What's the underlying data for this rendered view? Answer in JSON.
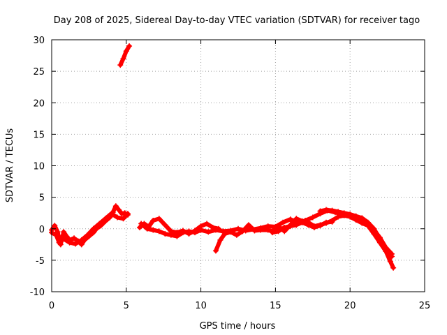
{
  "chart_data": {
    "type": "scatter",
    "title": "Day 208 of 2025, Sidereal Day-to-day VTEC variation (SDTVAR) for receiver tago",
    "xlabel": "GPS time / hours",
    "ylabel": "SDTVAR / TECUs",
    "xlim": [
      0,
      25
    ],
    "ylim": [
      -10,
      30
    ],
    "xticks": [
      0,
      5,
      10,
      15,
      20,
      25
    ],
    "yticks": [
      -10,
      -5,
      0,
      5,
      10,
      15,
      20,
      25,
      30
    ],
    "grid": true,
    "marker_color": "#ff0000",
    "series": [
      {
        "name": "tago",
        "segments": [
          [
            [
              0.0,
              -0.2
            ],
            [
              0.2,
              0.5
            ],
            [
              0.4,
              -0.5
            ],
            [
              0.6,
              -2.5
            ],
            [
              0.8,
              -0.5
            ],
            [
              1.0,
              -1.2
            ],
            [
              1.2,
              -1.8
            ],
            [
              1.5,
              -1.5
            ],
            [
              1.8,
              -2.0
            ],
            [
              2.0,
              -2.5
            ],
            [
              2.2,
              -1.8
            ],
            [
              2.5,
              -1.2
            ],
            [
              2.8,
              -0.6
            ],
            [
              3.0,
              0.0
            ],
            [
              3.3,
              0.5
            ],
            [
              3.6,
              1.2
            ],
            [
              3.9,
              1.8
            ],
            [
              4.1,
              2.6
            ],
            [
              4.3,
              3.6
            ],
            [
              4.5,
              3.0
            ],
            [
              4.7,
              2.4
            ],
            [
              4.9,
              2.5
            ],
            [
              5.1,
              2.2
            ]
          ],
          [
            [
              0.0,
              -0.6
            ],
            [
              0.3,
              -1.0
            ],
            [
              0.5,
              -2.2
            ],
            [
              0.8,
              -1.6
            ],
            [
              1.2,
              -2.2
            ],
            [
              1.6,
              -2.4
            ],
            [
              2.0,
              -1.8
            ],
            [
              2.4,
              -1.0
            ],
            [
              2.8,
              0.0
            ],
            [
              3.2,
              0.8
            ],
            [
              3.6,
              1.6
            ],
            [
              4.0,
              2.4
            ],
            [
              4.4,
              1.8
            ],
            [
              4.8,
              1.6
            ],
            [
              5.1,
              2.4
            ]
          ],
          [
            [
              4.6,
              26.0
            ],
            [
              4.8,
              27.0
            ],
            [
              5.0,
              28.2
            ],
            [
              5.2,
              29.0
            ]
          ],
          [
            [
              5.9,
              0.2
            ],
            [
              6.2,
              0.8
            ],
            [
              6.5,
              0.3
            ],
            [
              6.8,
              1.3
            ],
            [
              7.2,
              1.6
            ],
            [
              7.6,
              0.6
            ],
            [
              8.0,
              -0.4
            ],
            [
              8.4,
              -0.6
            ],
            [
              8.8,
              -0.3
            ],
            [
              9.2,
              -0.8
            ],
            [
              9.6,
              -0.3
            ],
            [
              10.0,
              0.4
            ],
            [
              10.4,
              0.8
            ],
            [
              10.8,
              0.2
            ],
            [
              11.2,
              0.0
            ]
          ],
          [
            [
              6.0,
              0.8
            ],
            [
              6.4,
              0.0
            ],
            [
              6.8,
              -0.2
            ],
            [
              7.2,
              -0.4
            ],
            [
              7.6,
              -0.8
            ],
            [
              8.0,
              -1.0
            ],
            [
              8.4,
              -1.2
            ],
            [
              8.8,
              -0.6
            ],
            [
              9.2,
              -0.4
            ],
            [
              9.6,
              -0.6
            ],
            [
              10.0,
              -0.2
            ]
          ],
          [
            [
              10.0,
              -0.2
            ],
            [
              10.5,
              -0.5
            ],
            [
              11.0,
              -0.2
            ],
            [
              11.5,
              -0.4
            ],
            [
              12.0,
              -0.3
            ],
            [
              12.5,
              0.0
            ],
            [
              13.0,
              -0.3
            ],
            [
              13.5,
              -0.1
            ],
            [
              14.0,
              0.1
            ],
            [
              14.5,
              0.4
            ],
            [
              15.0,
              0.3
            ],
            [
              15.5,
              1.0
            ],
            [
              16.0,
              1.5
            ],
            [
              16.5,
              0.9
            ],
            [
              17.0,
              1.3
            ],
            [
              17.5,
              1.8
            ],
            [
              18.0,
              2.4
            ],
            [
              18.5,
              2.9
            ],
            [
              19.0,
              2.6
            ],
            [
              19.5,
              2.3
            ],
            [
              20.0,
              2.1
            ],
            [
              20.5,
              1.6
            ],
            [
              21.0,
              1.1
            ],
            [
              21.5,
              0.1
            ],
            [
              22.0,
              -1.4
            ],
            [
              22.5,
              -3.4
            ],
            [
              22.8,
              -4.4
            ]
          ],
          [
            [
              11.0,
              -3.5
            ],
            [
              11.3,
              -1.8
            ],
            [
              11.6,
              -0.8
            ],
            [
              12.0,
              -0.5
            ],
            [
              12.4,
              -1.0
            ],
            [
              12.8,
              -0.4
            ],
            [
              13.2,
              0.6
            ],
            [
              13.6,
              -0.3
            ],
            [
              14.0,
              -0.2
            ],
            [
              14.5,
              -0.2
            ],
            [
              14.8,
              -0.4
            ],
            [
              15.2,
              0.4
            ],
            [
              15.6,
              -0.4
            ],
            [
              16.0,
              0.6
            ],
            [
              16.4,
              1.6
            ],
            [
              16.8,
              1.2
            ],
            [
              17.2,
              1.0
            ],
            [
              17.6,
              0.4
            ],
            [
              18.0,
              0.6
            ],
            [
              18.4,
              0.9
            ],
            [
              18.8,
              1.3
            ],
            [
              19.2,
              1.9
            ],
            [
              19.6,
              2.1
            ],
            [
              20.0,
              1.9
            ],
            [
              20.4,
              1.4
            ],
            [
              20.8,
              0.9
            ],
            [
              21.2,
              0.5
            ],
            [
              21.6,
              -0.8
            ],
            [
              22.0,
              -2.2
            ],
            [
              22.4,
              -3.6
            ],
            [
              22.7,
              -5.2
            ],
            [
              22.9,
              -6.2
            ]
          ],
          [
            [
              14.8,
              -0.6
            ],
            [
              15.2,
              -0.4
            ],
            [
              15.6,
              0.2
            ],
            [
              16.0,
              0.4
            ],
            [
              16.4,
              0.6
            ],
            [
              16.8,
              1.0
            ],
            [
              17.2,
              0.6
            ],
            [
              17.6,
              0.2
            ],
            [
              18.0,
              0.5
            ],
            [
              18.4,
              1.0
            ],
            [
              18.8,
              1.1
            ]
          ],
          [
            [
              18.0,
              2.8
            ],
            [
              18.4,
              3.0
            ],
            [
              18.8,
              2.9
            ],
            [
              19.2,
              2.7
            ],
            [
              19.6,
              2.5
            ],
            [
              20.0,
              2.3
            ],
            [
              20.4,
              2.0
            ],
            [
              20.8,
              1.7
            ],
            [
              21.2,
              1.0
            ],
            [
              21.6,
              0.0
            ],
            [
              22.0,
              -1.6
            ],
            [
              22.4,
              -3.0
            ],
            [
              22.8,
              -4.0
            ]
          ]
        ]
      }
    ]
  }
}
